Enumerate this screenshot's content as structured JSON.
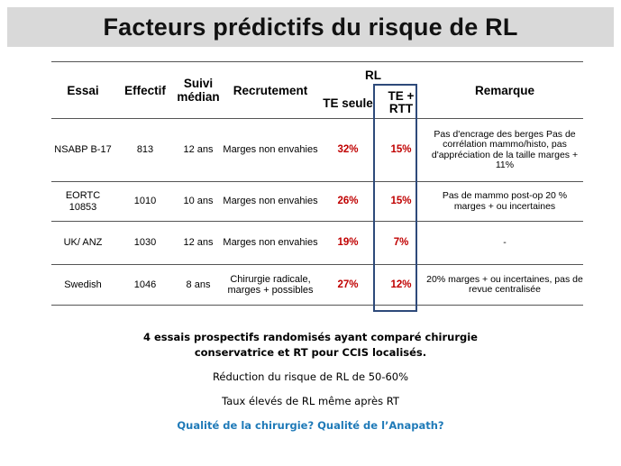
{
  "title": "Facteurs prédictifs du risque de RL",
  "table": {
    "headers": {
      "essai": "Essai",
      "effectif": "Effectif",
      "suivi": "Suivi médian",
      "recrutement": "Recrutement",
      "rl": "RL",
      "te_seule": "TE seule",
      "te_rtt": "TE + RTT",
      "remarque": "Remarque"
    },
    "rows": [
      {
        "essai": "NSABP B-17",
        "effectif": "813",
        "suivi": "12 ans",
        "recrutement": "Marges non envahies",
        "te_seule": "32%",
        "te_rtt": "15%",
        "remarque": "Pas d'encrage des berges Pas de corrélation mammo/histo, pas d'appréciation de la taille marges + 11%"
      },
      {
        "essai": "EORTC 10853",
        "effectif": "1010",
        "suivi": "10 ans",
        "recrutement": "Marges non envahies",
        "te_seule": "26%",
        "te_rtt": "15%",
        "remarque": "Pas de mammo post-op 20 % marges + ou incertaines"
      },
      {
        "essai": "UK/ ANZ",
        "effectif": "1030",
        "suivi": "12 ans",
        "recrutement": "Marges non envahies",
        "te_seule": "19%",
        "te_rtt": "7%",
        "remarque": "-"
      },
      {
        "essai": "Swedish",
        "effectif": "1046",
        "suivi": "8 ans",
        "recrutement": "Chirurgie radicale, marges + possibles",
        "te_seule": "27%",
        "te_rtt": "12%",
        "remarque": "20% marges + ou incertaines, pas de revue centralisée"
      }
    ]
  },
  "notes": {
    "line1": "4 essais prospectifs randomisés ayant comparé chirurgie conservatrice et RT pour CCIS localisés.",
    "line2": "Réduction du risque de RL de 50-60%",
    "line3": "Taux élevés de RL même après RT",
    "line4": "Qualité de la chirurgie? Qualité de l’Anapath?"
  },
  "colors": {
    "accent_red": "#c00000",
    "box_blue": "#2e4a7a",
    "note_blue": "#1f7ab8",
    "title_bg": "#d9d9d9"
  }
}
